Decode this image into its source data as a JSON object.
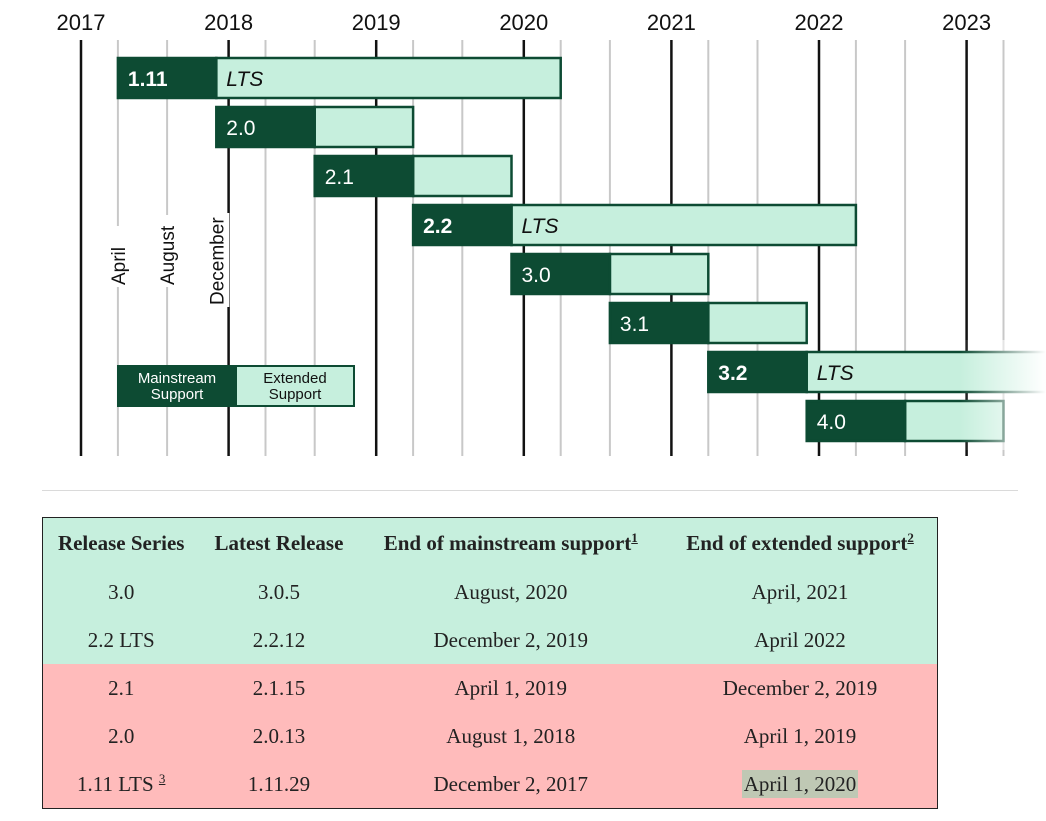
{
  "timeline": {
    "years": [
      "2017",
      "2018",
      "2019",
      "2020",
      "2021",
      "2022",
      "2023"
    ],
    "month_labels": [
      "April",
      "August",
      "December"
    ],
    "colors": {
      "mainstream": "#0d4b33",
      "extended": "#c6efdd",
      "border": "#0d4b33"
    },
    "releases": [
      {
        "label": "1.11",
        "bold": true,
        "start": "2017-04",
        "mainstream_end": "2017-12",
        "extended_end": "2020-04",
        "extended_label": "LTS"
      },
      {
        "label": "2.0",
        "bold": false,
        "start": "2017-12",
        "mainstream_end": "2018-08",
        "extended_end": "2019-04",
        "extended_label": ""
      },
      {
        "label": "2.1",
        "bold": false,
        "start": "2018-08",
        "mainstream_end": "2019-04",
        "extended_end": "2019-12",
        "extended_label": ""
      },
      {
        "label": "2.2",
        "bold": true,
        "start": "2019-04",
        "mainstream_end": "2019-12",
        "extended_end": "2022-04",
        "extended_label": "LTS"
      },
      {
        "label": "3.0",
        "bold": false,
        "start": "2019-12",
        "mainstream_end": "2020-08",
        "extended_end": "2021-04",
        "extended_label": ""
      },
      {
        "label": "3.1",
        "bold": false,
        "start": "2020-08",
        "mainstream_end": "2021-04",
        "extended_end": "2021-12",
        "extended_label": ""
      },
      {
        "label": "3.2",
        "bold": true,
        "start": "2021-04",
        "mainstream_end": "2021-12",
        "extended_end": "fade",
        "extended_label": "LTS"
      },
      {
        "label": "4.0",
        "bold": false,
        "start": "2021-12",
        "mainstream_end": "2022-08",
        "extended_end": "2023-04",
        "extended_label": ""
      }
    ],
    "legend": {
      "mainstream": [
        "Mainstream",
        "Support"
      ],
      "extended": [
        "Extended",
        "Support"
      ]
    }
  },
  "table": {
    "headers": {
      "release_series": "Release Series",
      "latest_release": "Latest Release",
      "end_mainstream": "End of mainstream support",
      "end_mainstream_note": "1",
      "end_extended": "End of extended support",
      "end_extended_note": "2"
    },
    "rows": [
      {
        "series": "3.0",
        "note": "",
        "latest": "3.0.5",
        "mainstream": "August, 2020",
        "extended": "April, 2021",
        "status": "supported"
      },
      {
        "series": "2.2 LTS",
        "note": "",
        "latest": "2.2.12",
        "mainstream": "December 2, 2019",
        "extended": "April 2022",
        "status": "supported"
      },
      {
        "series": "2.1",
        "note": "",
        "latest": "2.1.15",
        "mainstream": "April 1, 2019",
        "extended": "December 2, 2019",
        "status": "unsupported"
      },
      {
        "series": "2.0",
        "note": "",
        "latest": "2.0.13",
        "mainstream": "August 1, 2018",
        "extended": "April 1, 2019",
        "status": "unsupported"
      },
      {
        "series": "1.11 LTS",
        "note": "3",
        "latest": "1.11.29",
        "mainstream": "December 2, 2017",
        "extended": "April 1, 2020",
        "status": "unsupported",
        "highlight_extended": true
      }
    ]
  }
}
